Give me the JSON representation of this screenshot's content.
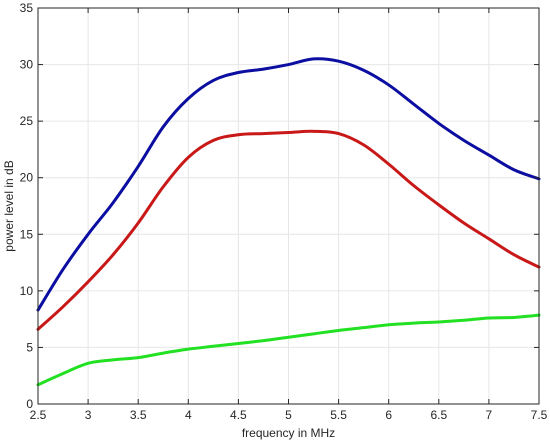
{
  "chart_data": {
    "type": "line",
    "title": "",
    "xlabel": "frequency in MHz",
    "ylabel": "power level in dB",
    "xlim": [
      2.5,
      7.5
    ],
    "ylim": [
      0,
      35
    ],
    "xticks": [
      2.5,
      3,
      3.5,
      4,
      4.5,
      5,
      5.5,
      6,
      6.5,
      7,
      7.5
    ],
    "xtick_labels": [
      "2.5",
      "3",
      "3.5",
      "4",
      "4.5",
      "5",
      "5.5",
      "6",
      "6.5",
      "7",
      "7.5"
    ],
    "yticks": [
      0,
      5,
      10,
      15,
      20,
      25,
      30,
      35
    ],
    "ytick_labels": [
      "0",
      "5",
      "10",
      "15",
      "20",
      "25",
      "30",
      "35"
    ],
    "grid": true,
    "legend": "none",
    "series": [
      {
        "color": "#0b0ea0",
        "x": [
          2.5,
          2.75,
          3.0,
          3.25,
          3.5,
          3.75,
          4.0,
          4.25,
          4.5,
          4.75,
          5.0,
          5.25,
          5.5,
          5.75,
          6.0,
          6.25,
          6.5,
          6.75,
          7.0,
          7.25,
          7.5
        ],
        "y": [
          8.3,
          11.9,
          15.0,
          17.8,
          21.0,
          24.5,
          27.0,
          28.6,
          29.3,
          29.6,
          30.0,
          30.5,
          30.3,
          29.5,
          28.2,
          26.5,
          24.8,
          23.3,
          22.0,
          20.7,
          19.9
        ]
      },
      {
        "color": "#c81818",
        "x": [
          2.5,
          2.75,
          3.0,
          3.25,
          3.5,
          3.75,
          4.0,
          4.25,
          4.5,
          4.75,
          5.0,
          5.25,
          5.5,
          5.75,
          6.0,
          6.25,
          6.5,
          6.75,
          7.0,
          7.25,
          7.5
        ],
        "y": [
          6.6,
          8.6,
          10.8,
          13.2,
          16.0,
          19.2,
          21.8,
          23.3,
          23.8,
          23.9,
          24.0,
          24.1,
          23.9,
          22.9,
          21.2,
          19.3,
          17.6,
          16.0,
          14.6,
          13.2,
          12.1
        ]
      },
      {
        "color": "#22e022",
        "x": [
          2.5,
          2.75,
          3.0,
          3.25,
          3.5,
          3.75,
          4.0,
          4.25,
          4.5,
          4.75,
          5.0,
          5.25,
          5.5,
          5.75,
          6.0,
          6.25,
          6.5,
          6.75,
          7.0,
          7.25,
          7.5
        ],
        "y": [
          1.7,
          2.7,
          3.6,
          3.9,
          4.1,
          4.5,
          4.85,
          5.1,
          5.35,
          5.6,
          5.9,
          6.2,
          6.5,
          6.75,
          7.0,
          7.15,
          7.25,
          7.4,
          7.6,
          7.65,
          7.85
        ]
      }
    ]
  }
}
